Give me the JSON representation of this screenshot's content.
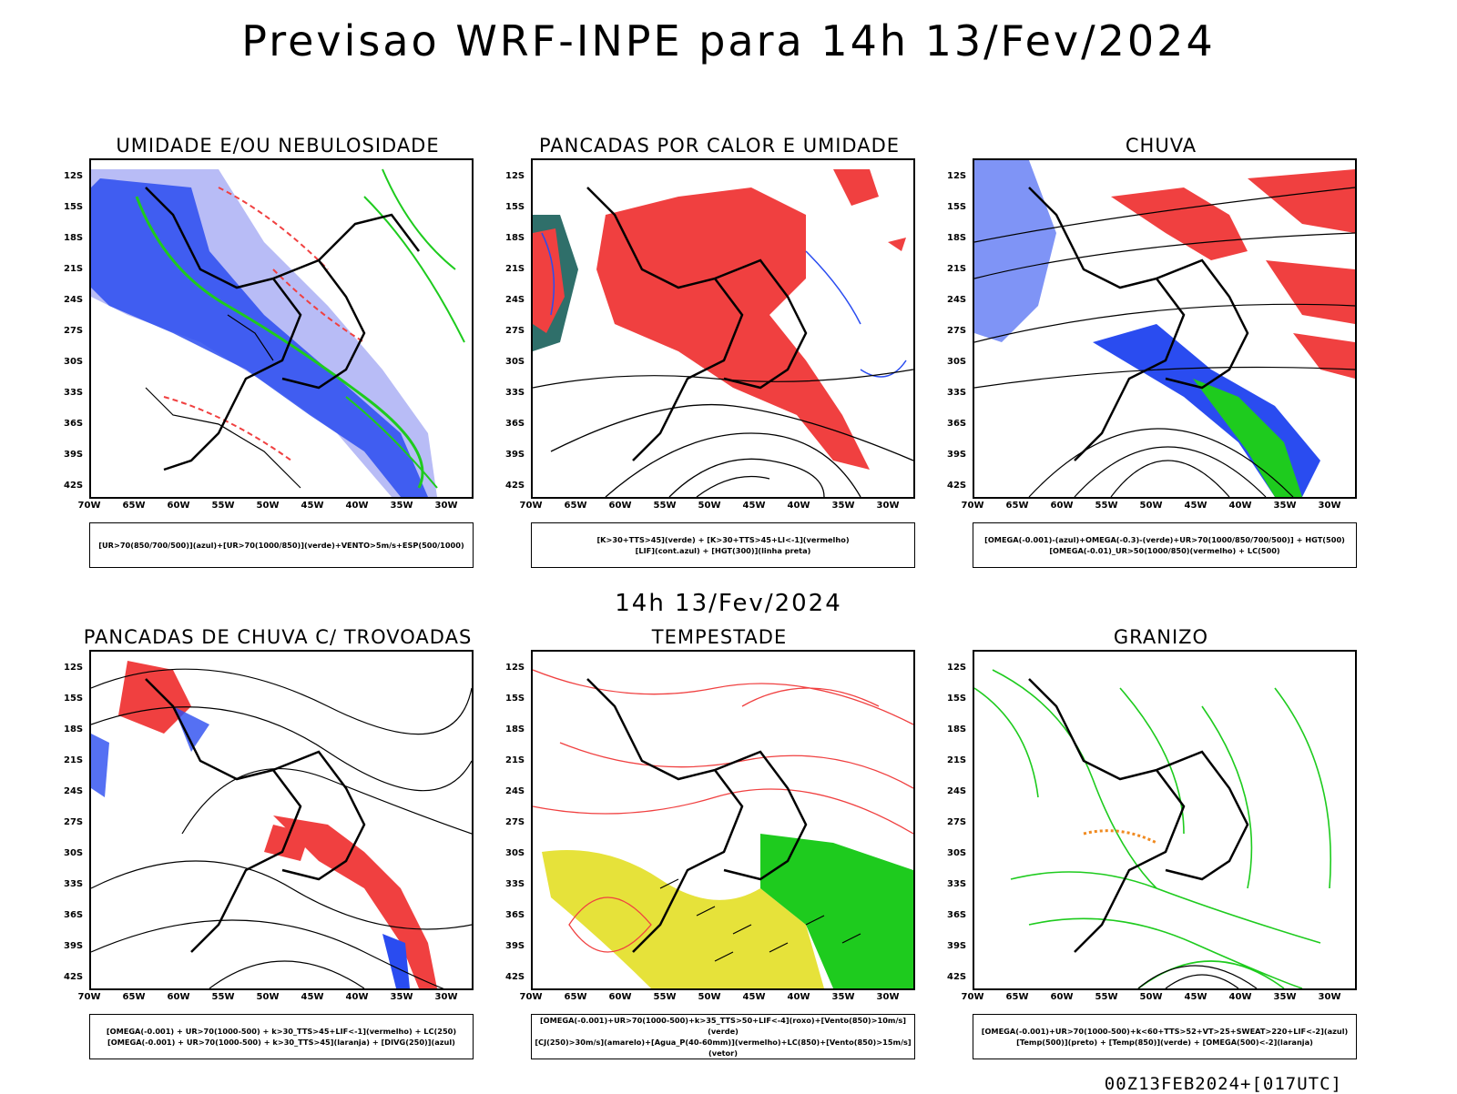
{
  "title": "Previsao WRF-INPE  para 14h 13/Fev/2024",
  "subtitle": "14h 13/Fev/2024",
  "footer": "00Z13FEB2024+[017UTC]",
  "lat_labels": [
    "12S",
    "15S",
    "18S",
    "21S",
    "24S",
    "27S",
    "30S",
    "33S",
    "36S",
    "39S",
    "42S"
  ],
  "lon_labels": [
    "70W",
    "65W",
    "60W",
    "55W",
    "50W",
    "45W",
    "40W",
    "35W",
    "30W"
  ],
  "colors": {
    "red": "#f04040",
    "blue": "#2a4cf0",
    "green": "#1ecb1e",
    "lightblue": "#b8bcf6",
    "yellow": "#e6e23a",
    "orange": "#f08a20",
    "teal": "#2f6f6a"
  },
  "panels": [
    {
      "title": "UMIDADE E/OU NEBULOSIDADE",
      "legend": [
        "[UR>70(850/700/500)](azul)+[UR>70(1000/850)](verde)+VENTO>5m/s+ESP(500/1000)"
      ]
    },
    {
      "title": "PANCADAS POR CALOR E UMIDADE",
      "legend": [
        "[K>30+TTS>45](verde)  +  [K>30+TTS>45+LI<-1](vermelho)",
        "[LIF](cont.azul)  +  [HGT(300)](linha preta)"
      ]
    },
    {
      "title": "CHUVA",
      "legend": [
        "[OMEGA(-0.001)-(azul)+OMEGA(-0.3)-(verde)+UR>70(1000/850/700/500)]  +  HGT(500)",
        "[OMEGA(-0.01)_UR>50(1000/850)(vermelho)  +  LC(500)"
      ]
    },
    {
      "title": "PANCADAS DE CHUVA C/ TROVOADAS",
      "legend": [
        "[OMEGA(-0.001) + UR>70(1000-500) + k>30_TTS>45+LIF<-1](vermelho) + LC(250)",
        "[OMEGA(-0.001) + UR>70(1000-500) + k>30_TTS>45](laranja) + [DIVG(250)](azul)"
      ]
    },
    {
      "title": "TEMPESTADE",
      "legend": [
        "[OMEGA(-0.001)+UR>70(1000-500)+k>35_TTS>50+LIF<-4](roxo)+[Vento(850)>10m/s](verde)",
        "[CJ(250)>30m/s](amarelo)+[Agua_P(40-60mm)](vermelho)+LC(850)+[Vento(850)>15m/s](vetor)"
      ]
    },
    {
      "title": "GRANIZO",
      "legend": [
        "[OMEGA(-0.001)+UR>70(1000-500)+k<60+TTS>52+VT>25+SWEAT>220+LIF<-2](azul)",
        "[Temp(500)](preto)  +  [Temp(850)](verde)  +  [OMEGA(500)<-2](laranja)"
      ]
    }
  ]
}
